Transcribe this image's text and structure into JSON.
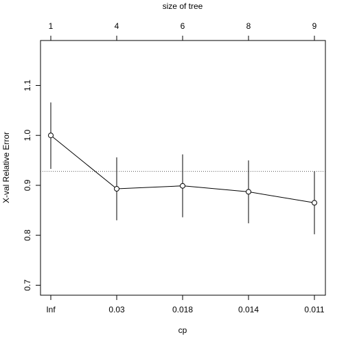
{
  "chart_data": {
    "type": "line",
    "title": "",
    "xlabel": "cp",
    "ylabel": "X-val Relative Error",
    "top_axis_label": "size of tree",
    "categories": [
      "Inf",
      "0.03",
      "0.018",
      "0.014",
      "0.011"
    ],
    "top_tick_labels": [
      "1",
      "4",
      "6",
      "8",
      "9"
    ],
    "y_ticks": [
      "0.7",
      "0.8",
      "0.9",
      "1.0",
      "1.1"
    ],
    "ylim": [
      0.68,
      1.19
    ],
    "grid": false,
    "series": [
      {
        "values": [
          1.0,
          0.893,
          0.899,
          0.887,
          0.865
        ],
        "error_low": [
          0.933,
          0.83,
          0.836,
          0.824,
          0.802
        ],
        "error_high": [
          1.066,
          0.956,
          0.962,
          0.95,
          0.928
        ]
      }
    ],
    "reference_line": {
      "y": 0.928,
      "style": "dotted"
    }
  }
}
